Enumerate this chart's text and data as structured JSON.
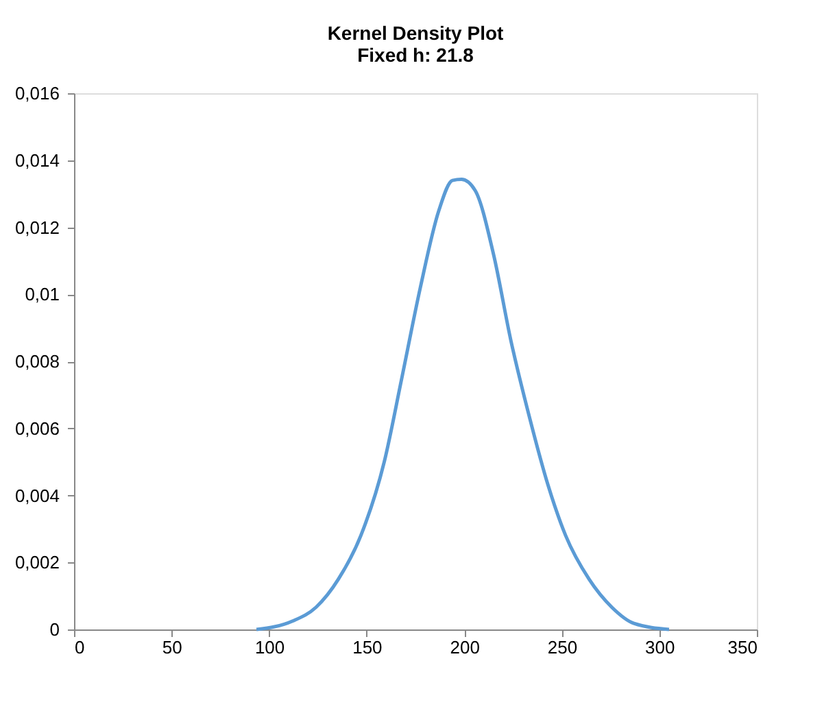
{
  "chart_data": {
    "type": "line",
    "title": "Kernel Density Plot",
    "subtitle": "Fixed h: 21.8",
    "x": [
      93.5,
      112,
      124,
      135.5,
      147,
      159,
      168,
      177.5,
      187,
      194,
      198.6,
      205.6,
      215,
      224,
      233.6,
      243,
      252,
      264,
      275.7,
      287,
      305
    ],
    "series": [
      {
        "color": "#5b9bd5",
        "values": [
          0,
          0.00025,
          0.00066,
          0.0015,
          0.0028,
          0.005,
          0.0075,
          0.0102,
          0.0125,
          0.0134,
          0.01343,
          0.0131,
          0.0112,
          0.0086,
          0.0063,
          0.0043,
          0.0028,
          0.0015,
          0.00066,
          0.00018,
          0
        ]
      }
    ],
    "xlim": [
      0,
      350
    ],
    "xticks": [
      0,
      50,
      100,
      150,
      200,
      250,
      300,
      350
    ],
    "ylim": [
      0,
      0.016
    ],
    "yticks": [
      0,
      {
        "value": 0.002,
        "label": "0,002"
      },
      {
        "value": 0.004,
        "label": "0,004"
      },
      {
        "value": 0.006,
        "label": "0,006"
      },
      {
        "value": 0.008,
        "label": "0,008"
      },
      {
        "value": 0.01,
        "label": "0,01"
      },
      {
        "value": 0.012,
        "label": "0,012"
      },
      {
        "value": 0.014,
        "label": "0,014"
      },
      {
        "value": 0.016,
        "label": "0,016"
      }
    ],
    "grid": false,
    "marker": "none",
    "line_style": "solid"
  }
}
